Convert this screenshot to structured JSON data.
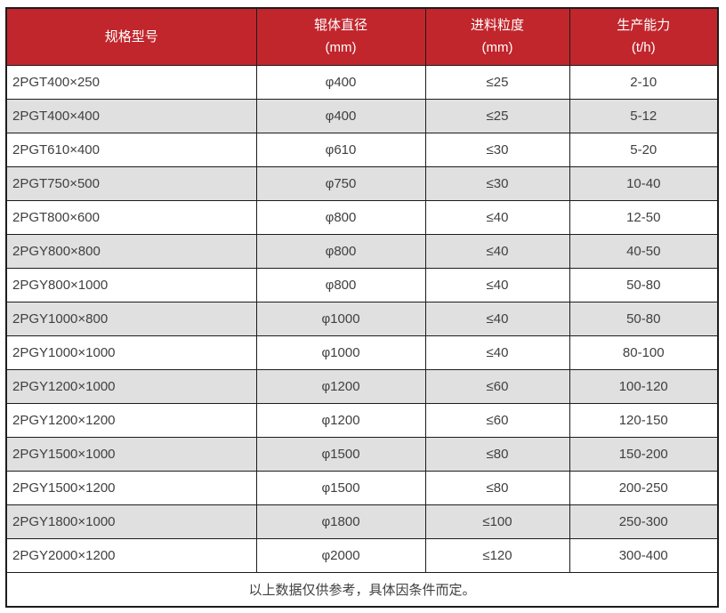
{
  "colors": {
    "header_bg": "#c1262c",
    "header_text": "#ffffff",
    "row_bg": "#ffffff",
    "row_alt_bg": "#e0e0e0",
    "border": "#1c1c1c",
    "text": "#404040"
  },
  "table": {
    "columns": [
      {
        "title": "规格型号",
        "unit": ""
      },
      {
        "title": "辊体直径",
        "unit": "(mm)"
      },
      {
        "title": "进料粒度",
        "unit": "(mm)"
      },
      {
        "title": "生产能力",
        "unit": "(t/h)"
      }
    ],
    "rows": [
      [
        "2PGT400×250",
        "φ400",
        "≤25",
        "2-10"
      ],
      [
        "2PGT400×400",
        "φ400",
        "≤25",
        "5-12"
      ],
      [
        "2PGT610×400",
        "φ610",
        "≤30",
        "5-20"
      ],
      [
        "2PGT750×500",
        "φ750",
        "≤30",
        "10-40"
      ],
      [
        "2PGT800×600",
        "φ800",
        "≤40",
        "12-50"
      ],
      [
        "2PGY800×800",
        "φ800",
        "≤40",
        "40-50"
      ],
      [
        "2PGY800×1000",
        "φ800",
        "≤40",
        "50-80"
      ],
      [
        "2PGY1000×800",
        "φ1000",
        "≤40",
        "50-80"
      ],
      [
        "2PGY1000×1000",
        "φ1000",
        "≤40",
        "80-100"
      ],
      [
        "2PGY1200×1000",
        "φ1200",
        "≤60",
        "100-120"
      ],
      [
        "2PGY1200×1200",
        "φ1200",
        "≤60",
        "120-150"
      ],
      [
        "2PGY1500×1000",
        "φ1500",
        "≤80",
        "150-200"
      ],
      [
        "2PGY1500×1200",
        "φ1500",
        "≤80",
        "200-250"
      ],
      [
        "2PGY1800×1000",
        "φ1800",
        "≤100",
        "250-300"
      ],
      [
        "2PGY2000×1200",
        "φ2000",
        "≤120",
        "300-400"
      ]
    ],
    "footnote": "以上数据仅供参考，具体因条件而定。"
  }
}
